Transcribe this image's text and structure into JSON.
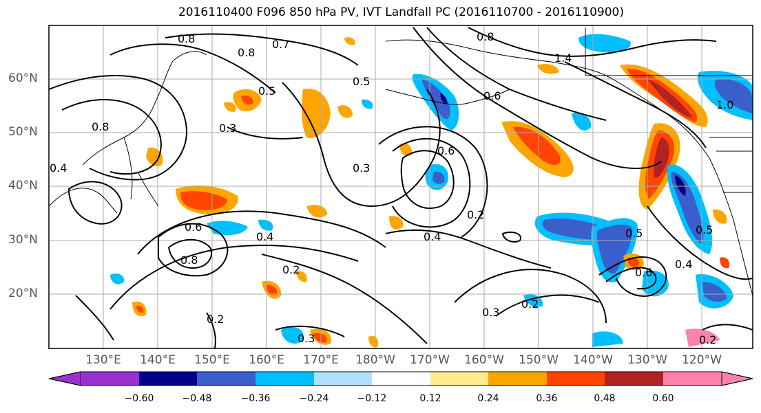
{
  "title": "2016110400 F096 850 hPa PV, IVT Landfall PC (2016110700 - 2016110900)",
  "lat_labels": [
    "60°N",
    "50°N",
    "40°N",
    "30°N",
    "20°N"
  ],
  "lon_labels": [
    "130°E",
    "140°E",
    "150°E",
    "160°E",
    "170°E",
    "180°W",
    "170°W",
    "160°W",
    "150°W",
    "140°W",
    "130°W",
    "120°W"
  ],
  "colorbar": {
    "ticks": [
      "−0.60",
      "−0.48",
      "−0.36",
      "−0.24",
      "−0.12",
      "0.12",
      "0.24",
      "0.36",
      "0.48",
      "0.60"
    ],
    "colors": [
      "#9932cc",
      "#00008b",
      "#3a5fcd",
      "#00bfff",
      "#b0e2ff",
      "#ffffff",
      "#ffec8b",
      "#ffa500",
      "#ff4500",
      "#b22222",
      "#ff82ab"
    ]
  },
  "contour_labels": [
    "0.8",
    "0.7",
    "0.5",
    "0.8",
    "1.4",
    "0.8",
    "0.6",
    "0.3",
    "0.4",
    "0.3",
    "0.2",
    "0.6",
    "0.4",
    "0.8",
    "0.2",
    "0.4",
    "0.5",
    "0.6",
    "0.4",
    "0.3",
    "0.2",
    "0.2",
    "0.3",
    "0.2",
    "0.5",
    "0.5",
    "0.6",
    "1.0",
    "0.8"
  ]
}
